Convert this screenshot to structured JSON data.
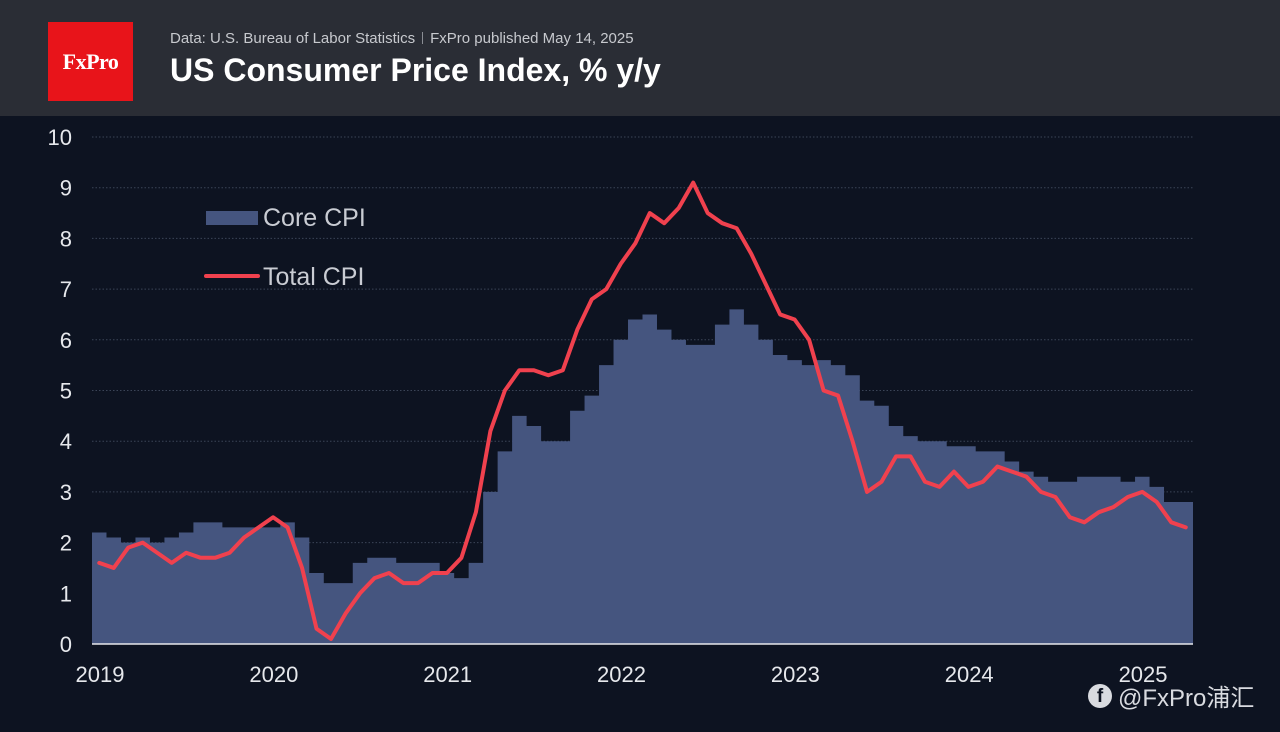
{
  "header": {
    "logo_text": "FxPro",
    "source_text": "Data: U.S. Bureau of Labor Statistics",
    "published_text": "FxPro published May 14, 2025",
    "title": "US Consumer Price Index, % y/y"
  },
  "watermark": {
    "text": "@FxPro浦汇",
    "icon": "facebook-icon"
  },
  "colors": {
    "background": "#0d1321",
    "header": "#2a2d35",
    "core_fill": "#45557f",
    "total_line": "#f0414e",
    "brand": "#e8141a"
  },
  "chart_data": {
    "type": "area",
    "title": "US Consumer Price Index, % y/y",
    "xlabel": "",
    "ylabel": "",
    "ylim": [
      0,
      10
    ],
    "yticks": [
      "0",
      "1",
      "2",
      "3",
      "4",
      "5",
      "6",
      "7",
      "8",
      "9",
      "10"
    ],
    "xticks": [
      "2019",
      "2020",
      "2021",
      "2022",
      "2023",
      "2024",
      "2025"
    ],
    "grid": true,
    "legend_placement": "top-left",
    "x_start": "2019-01",
    "x_end": "2025-04",
    "series": [
      {
        "name": "Core CPI",
        "style": "step-area",
        "values": [
          2.2,
          2.1,
          2.0,
          2.1,
          2.0,
          2.1,
          2.2,
          2.4,
          2.4,
          2.3,
          2.3,
          2.3,
          2.3,
          2.4,
          2.1,
          1.4,
          1.2,
          1.2,
          1.6,
          1.7,
          1.7,
          1.6,
          1.6,
          1.6,
          1.4,
          1.3,
          1.6,
          3.0,
          3.8,
          4.5,
          4.3,
          4.0,
          4.0,
          4.6,
          4.9,
          5.5,
          6.0,
          6.4,
          6.5,
          6.2,
          6.0,
          5.9,
          5.9,
          6.3,
          6.6,
          6.3,
          6.0,
          5.7,
          5.6,
          5.5,
          5.6,
          5.5,
          5.3,
          4.8,
          4.7,
          4.3,
          4.1,
          4.0,
          4.0,
          3.9,
          3.9,
          3.8,
          3.8,
          3.6,
          3.4,
          3.3,
          3.2,
          3.2,
          3.3,
          3.3,
          3.3,
          3.2,
          3.3,
          3.1,
          2.8,
          2.8
        ]
      },
      {
        "name": "Total CPI",
        "style": "line",
        "values": [
          1.6,
          1.5,
          1.9,
          2.0,
          1.8,
          1.6,
          1.8,
          1.7,
          1.7,
          1.8,
          2.1,
          2.3,
          2.5,
          2.3,
          1.5,
          0.3,
          0.1,
          0.6,
          1.0,
          1.3,
          1.4,
          1.2,
          1.2,
          1.4,
          1.4,
          1.7,
          2.6,
          4.2,
          5.0,
          5.4,
          5.4,
          5.3,
          5.4,
          6.2,
          6.8,
          7.0,
          7.5,
          7.9,
          8.5,
          8.3,
          8.6,
          9.1,
          8.5,
          8.3,
          8.2,
          7.7,
          7.1,
          6.5,
          6.4,
          6.0,
          5.0,
          4.9,
          4.0,
          3.0,
          3.2,
          3.7,
          3.7,
          3.2,
          3.1,
          3.4,
          3.1,
          3.2,
          3.5,
          3.4,
          3.3,
          3.0,
          2.9,
          2.5,
          2.4,
          2.6,
          2.7,
          2.9,
          3.0,
          2.8,
          2.4,
          2.3
        ]
      }
    ]
  }
}
